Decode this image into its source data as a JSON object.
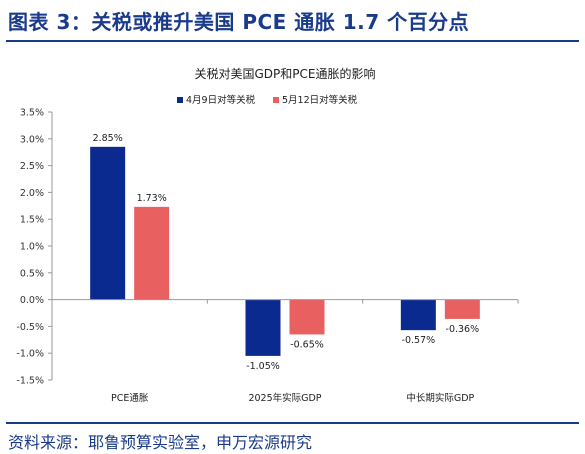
{
  "figure": {
    "title": "图表 3：关税或推升美国 PCE 通胀 1.7 个百分点",
    "source": "资料来源：耶鲁预算实验室，申万宏源研究"
  },
  "chart_data": {
    "type": "bar",
    "title": "关税对美国GDP和PCE通胀的影响",
    "categories": [
      "PCE通胀",
      "2025年实际GDP",
      "中长期实际GDP"
    ],
    "series": [
      {
        "name": "4月9日对等关税",
        "color": "#0b2a8f",
        "values": [
          2.85,
          -1.05,
          -0.57
        ],
        "labels": [
          "2.85%",
          "-1.05%",
          "-0.57%"
        ]
      },
      {
        "name": "5月12日对等关税",
        "color": "#e86060",
        "values": [
          1.73,
          -0.65,
          -0.36
        ],
        "labels": [
          "1.73%",
          "-0.65%",
          "-0.36%"
        ]
      }
    ],
    "ylim": [
      -1.5,
      3.5
    ],
    "yticks": [
      "-1.5%",
      "-1.0%",
      "-0.5%",
      "0.0%",
      "0.5%",
      "1.0%",
      "1.5%",
      "2.0%",
      "2.5%",
      "3.0%",
      "3.5%"
    ],
    "legend_position": "top",
    "grid": false
  }
}
